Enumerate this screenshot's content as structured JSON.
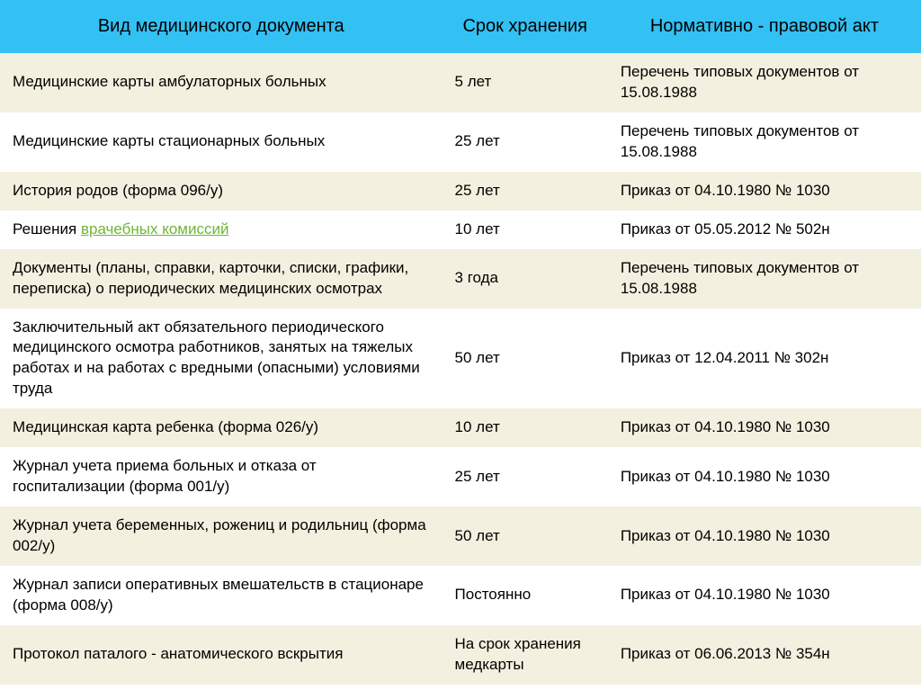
{
  "table": {
    "type": "table",
    "header_bg": "#33c0f3",
    "band_colors": {
      "a": "#f3f0df",
      "b": "#ffffff"
    },
    "link_color": "#6fb536",
    "columns": [
      {
        "label": "Вид медицинского документа",
        "width_pct": 48,
        "align": "left"
      },
      {
        "label": "Срок хранения",
        "width_pct": 18,
        "align": "left"
      },
      {
        "label": "Нормативно - правовой акт",
        "width_pct": 34,
        "align": "left"
      }
    ],
    "rows": [
      {
        "band": "a",
        "doc_prefix": "Медицинские карты амбулаторных больных",
        "doc_link": "",
        "term": "5 лет",
        "act": "Перечень типовых документов от 15.08.1988"
      },
      {
        "band": "b",
        "doc_prefix": "Медицинские карты стационарных больных",
        "doc_link": "",
        "term": "25 лет",
        "act": "Перечень типовых документов от 15.08.1988"
      },
      {
        "band": "a",
        "doc_prefix": "История родов (форма 096/у)",
        "doc_link": "",
        "term": "25 лет",
        "act": "Приказ от 04.10.1980 № 1030"
      },
      {
        "band": "b",
        "doc_prefix": "Решения ",
        "doc_link": "врачебных комиссий",
        "term": "10 лет",
        "act": "Приказ от 05.05.2012 № 502н"
      },
      {
        "band": "a",
        "doc_prefix": "Документы (планы, справки, карточки, списки, графики, переписка) о периодических медицинских осмотрах",
        "doc_link": "",
        "term": "3 года",
        "act": "Перечень типовых документов от 15.08.1988"
      },
      {
        "band": "b",
        "doc_prefix": "Заключительный акт обязательного периодического медицинского осмотра работников, занятых на тяжелых работах и на работах с вредными (опасными) условиями труда",
        "doc_link": "",
        "term": "50 лет",
        "act": "Приказ от 12.04.2011 № 302н"
      },
      {
        "band": "a",
        "doc_prefix": "Медицинская карта ребенка (форма 026/у)",
        "doc_link": "",
        "term": "10 лет",
        "act": "Приказ от 04.10.1980 № 1030"
      },
      {
        "band": "b",
        "doc_prefix": "Журнал учета приема больных и отказа от госпитализации (форма 001/у)",
        "doc_link": "",
        "term": "25 лет",
        "act": "Приказ от 04.10.1980 № 1030"
      },
      {
        "band": "a",
        "doc_prefix": "Журнал учета беременных, рожениц и родильниц (форма 002/у)",
        "doc_link": "",
        "term": "50 лет",
        "act": "Приказ от 04.10.1980 № 1030"
      },
      {
        "band": "b",
        "doc_prefix": "Журнал записи оперативных вмешательств в стационаре (форма 008/у)",
        "doc_link": "",
        "term": "Постоянно",
        "act": "Приказ от 04.10.1980 № 1030"
      },
      {
        "band": "a",
        "doc_prefix": "Протокол паталого - анатомического вскрытия",
        "doc_link": "",
        "term": "На срок хранения медкарты",
        "act": "Приказ от 06.06.2013 № 354н"
      }
    ]
  }
}
